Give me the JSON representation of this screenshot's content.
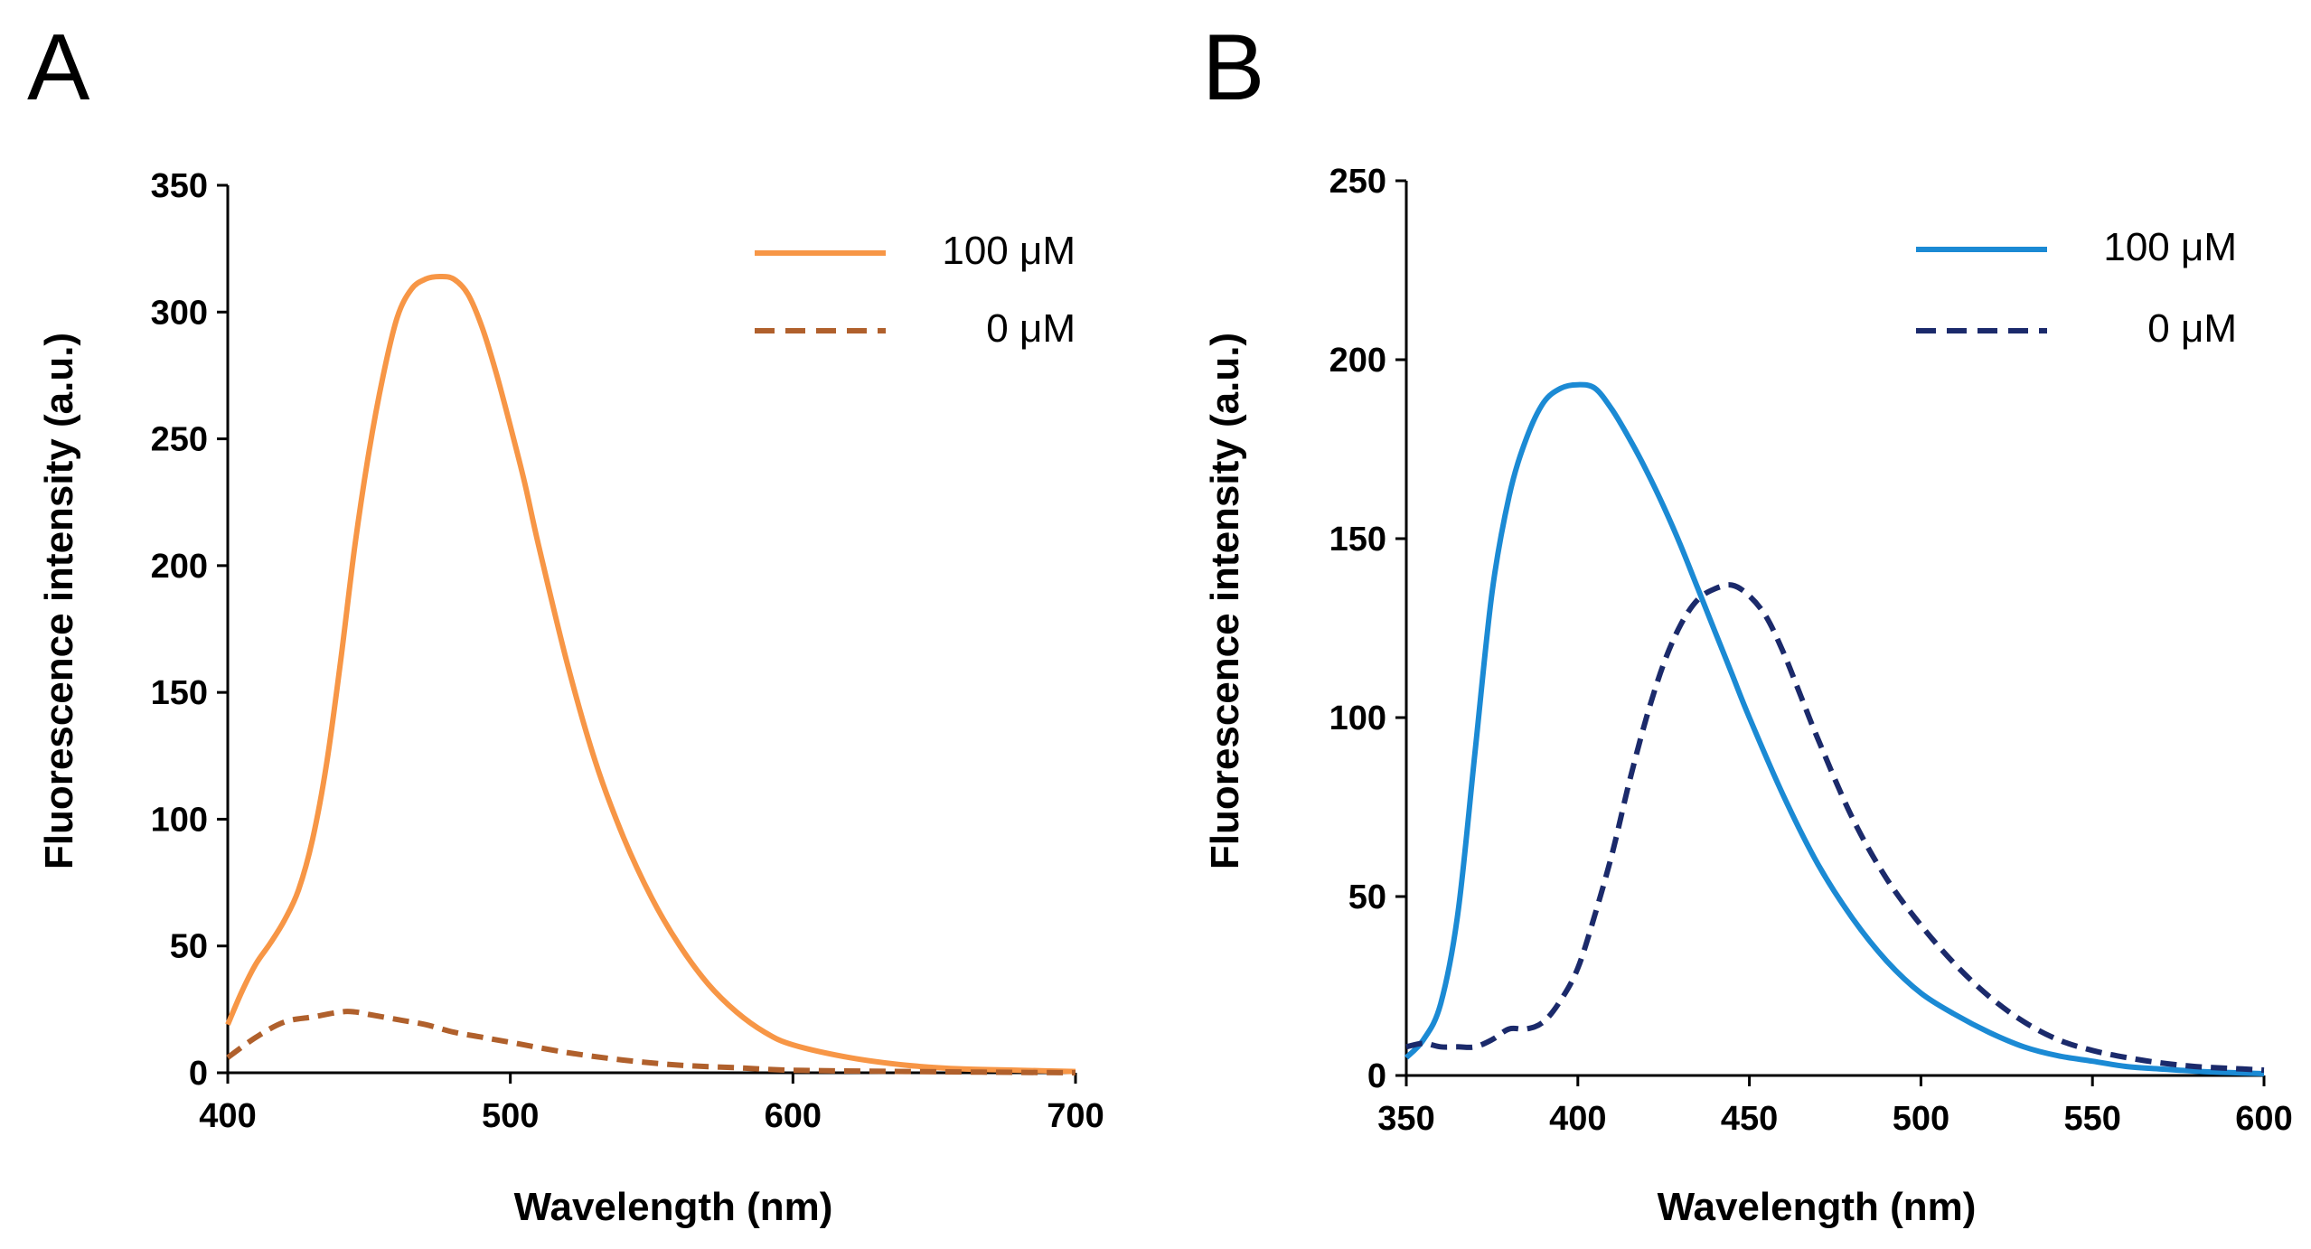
{
  "chart_data": [
    {
      "panel": "A",
      "type": "line",
      "xlabel": "Wavelength (nm)",
      "ylabel": "Fluorescence intensity (a.u.)",
      "xlim": [
        400,
        700
      ],
      "ylim": [
        0,
        350
      ],
      "xticks": [
        400,
        500,
        600,
        700
      ],
      "yticks": [
        0,
        50,
        100,
        150,
        200,
        250,
        300,
        350
      ],
      "grid": false,
      "legend_position": "top-right",
      "series": [
        {
          "name": "100 μM",
          "color": "#F79646",
          "dash": "solid",
          "x": [
            400,
            405,
            410,
            415,
            420,
            425,
            430,
            435,
            440,
            445,
            450,
            455,
            460,
            465,
            470,
            475,
            480,
            485,
            490,
            495,
            500,
            505,
            510,
            520,
            530,
            540,
            550,
            560,
            570,
            580,
            590,
            600,
            620,
            640,
            660,
            680,
            700
          ],
          "values": [
            19,
            32,
            43,
            51,
            60,
            72,
            92,
            122,
            163,
            208,
            245,
            275,
            298,
            309,
            313,
            314,
            313,
            307,
            294,
            276,
            255,
            233,
            208,
            162,
            123,
            93,
            69,
            50,
            35,
            24,
            16,
            11,
            6,
            3,
            1.5,
            1,
            0.5
          ]
        },
        {
          "name": "0 μM",
          "color": "#B0602C",
          "dash": "dashed",
          "x": [
            400,
            410,
            420,
            430,
            440,
            445,
            450,
            460,
            470,
            480,
            490,
            500,
            520,
            540,
            560,
            580,
            600,
            640,
            700
          ],
          "values": [
            6,
            14,
            20,
            22,
            24,
            24,
            23,
            21,
            19,
            16,
            14,
            12,
            8,
            5,
            3,
            2,
            1,
            0.5,
            0
          ]
        }
      ]
    },
    {
      "panel": "B",
      "type": "line",
      "xlabel": "Wavelength (nm)",
      "ylabel": "Fluorescence intensity (a.u.)",
      "xlim": [
        350,
        600
      ],
      "ylim": [
        0,
        250
      ],
      "xticks": [
        350,
        400,
        450,
        500,
        550,
        600
      ],
      "yticks": [
        0,
        50,
        100,
        150,
        200,
        250
      ],
      "grid": false,
      "legend_position": "top-right",
      "series": [
        {
          "name": "100 μM",
          "color": "#1B8AD4",
          "dash": "solid",
          "x": [
            350,
            355,
            360,
            365,
            370,
            375,
            380,
            385,
            390,
            395,
            400,
            405,
            410,
            415,
            420,
            425,
            430,
            435,
            440,
            445,
            450,
            460,
            470,
            480,
            490,
            500,
            510,
            520,
            530,
            540,
            550,
            560,
            570,
            580,
            590,
            600
          ],
          "values": [
            5,
            10,
            20,
            45,
            90,
            135,
            162,
            178,
            188,
            192,
            193,
            192,
            186,
            178,
            169,
            159,
            148,
            136,
            124,
            112,
            100,
            78,
            59,
            44,
            32,
            23,
            17,
            12,
            8,
            5.5,
            4,
            2.5,
            1.8,
            1.2,
            0.8,
            0.5
          ]
        },
        {
          "name": "0 μM",
          "color": "#1B2A6B",
          "dash": "dashed",
          "x": [
            350,
            355,
            360,
            365,
            370,
            375,
            380,
            385,
            390,
            395,
            400,
            405,
            410,
            415,
            420,
            425,
            430,
            435,
            440,
            445,
            450,
            455,
            460,
            465,
            470,
            480,
            490,
            500,
            510,
            520,
            530,
            540,
            550,
            560,
            570,
            580,
            590,
            600
          ],
          "values": [
            8,
            9,
            8,
            8,
            8,
            10,
            13,
            13,
            15,
            21,
            30,
            45,
            62,
            82,
            100,
            115,
            126,
            133,
            136,
            137,
            134,
            128,
            118,
            106,
            94,
            72,
            55,
            42,
            31,
            22,
            15,
            10,
            7,
            5,
            3.5,
            2.5,
            2,
            1.5
          ]
        }
      ]
    }
  ]
}
